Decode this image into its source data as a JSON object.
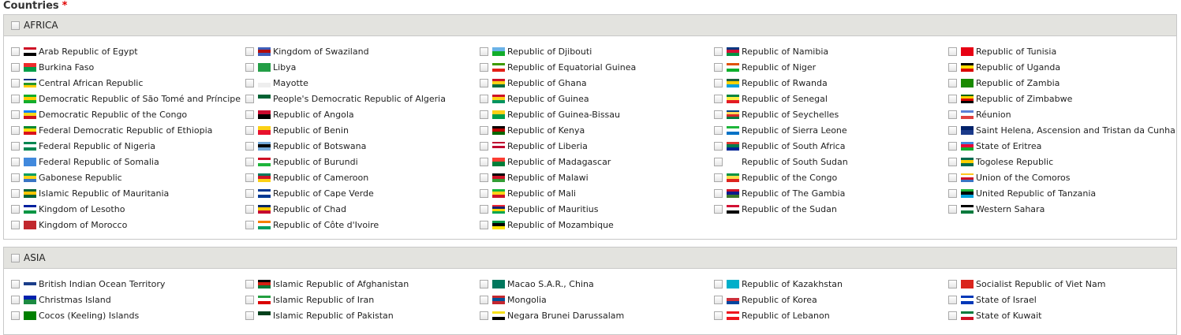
{
  "field_label": "Countries",
  "required_mark": "*",
  "sections": [
    {
      "name": "AFRICA",
      "columns": [
        [
          [
            "Arab Republic of Egypt",
            [
              "#ce1126",
              "#fff",
              "#000"
            ]
          ],
          [
            "Burkina Faso",
            [
              "#ef2b2d",
              "#009e49"
            ]
          ],
          [
            "Central African Republic",
            [
              "#003082",
              "#fff",
              "#289728",
              "#ffce00"
            ]
          ],
          [
            "Democratic Republic of São Tomé and Príncipe",
            [
              "#12ad2b",
              "#ffce00",
              "#12ad2b"
            ]
          ],
          [
            "Democratic Republic of the Congo",
            [
              "#007fff",
              "#f7d618",
              "#ce1021"
            ]
          ],
          [
            "Federal Democratic Republic of Ethiopia",
            [
              "#078930",
              "#fcdd09",
              "#da121a"
            ]
          ],
          [
            "Federal Republic of Nigeria",
            [
              "#008751",
              "#fff",
              "#008751"
            ]
          ],
          [
            "Federal Republic of Somalia",
            [
              "#4189dd"
            ]
          ],
          [
            "Gabonese Republic",
            [
              "#009e60",
              "#fcd116",
              "#3a75c4"
            ]
          ],
          [
            "Islamic Republic of Mauritania",
            [
              "#006233",
              "#ffc400",
              "#006233"
            ]
          ],
          [
            "Kingdom of Lesotho",
            [
              "#00209f",
              "#fff",
              "#009543"
            ]
          ],
          [
            "Kingdom of Morocco",
            [
              "#c1272d"
            ]
          ]
        ],
        [
          [
            "Kingdom of Swaziland",
            [
              "#3e5eb9",
              "#b10c0c",
              "#3e5eb9"
            ]
          ],
          [
            "Libya",
            [
              "#239e46"
            ]
          ],
          [
            "Mayotte",
            [
              "#fff",
              "#eee"
            ]
          ],
          [
            "People's Democratic Republic of Algeria",
            [
              "#006233",
              "#fff"
            ]
          ],
          [
            "Republic of Angola",
            [
              "#cc092f",
              "#000"
            ]
          ],
          [
            "Republic of Benin",
            [
              "#fcd116",
              "#e8112d"
            ]
          ],
          [
            "Republic of Botswana",
            [
              "#75aadb",
              "#000",
              "#75aadb"
            ]
          ],
          [
            "Republic of Burundi",
            [
              "#ce1126",
              "#fff",
              "#1eb53a"
            ]
          ],
          [
            "Republic of Cameroon",
            [
              "#007a5e",
              "#ce1126",
              "#fcd116"
            ]
          ],
          [
            "Republic of Cape Verde",
            [
              "#003893",
              "#fff",
              "#003893"
            ]
          ],
          [
            "Republic of Chad",
            [
              "#002664",
              "#fecb00",
              "#c60c30"
            ]
          ],
          [
            "Republic of Côte d'Ivoire",
            [
              "#f77f00",
              "#fff",
              "#009e60"
            ]
          ]
        ],
        [
          [
            "Republic of Djibouti",
            [
              "#6ab2e7",
              "#12ad2b"
            ]
          ],
          [
            "Republic of Equatorial Guinea",
            [
              "#3e9a00",
              "#fff",
              "#e32118"
            ]
          ],
          [
            "Republic of Ghana",
            [
              "#ce1126",
              "#fcd116",
              "#006b3f"
            ]
          ],
          [
            "Republic of Guinea",
            [
              "#ce1126",
              "#fcd116",
              "#009460"
            ]
          ],
          [
            "Republic of Guinea-Bissau",
            [
              "#fcd116",
              "#009e49"
            ]
          ],
          [
            "Republic of Kenya",
            [
              "#000",
              "#bb0000",
              "#006600"
            ]
          ],
          [
            "Republic of Liberia",
            [
              "#bf0a30",
              "#fff",
              "#bf0a30",
              "#fff"
            ]
          ],
          [
            "Republic of Madagascar",
            [
              "#fc3d32",
              "#007e3a"
            ]
          ],
          [
            "Republic of Malawi",
            [
              "#000",
              "#ce1126",
              "#339e35"
            ]
          ],
          [
            "Republic of Mali",
            [
              "#14b53a",
              "#fcd116",
              "#ce1126"
            ]
          ],
          [
            "Republic of Mauritius",
            [
              "#ea2839",
              "#1a206d",
              "#ffd500",
              "#00a551"
            ]
          ],
          [
            "Republic of Mozambique",
            [
              "#009a44",
              "#000",
              "#fce100"
            ]
          ]
        ],
        [
          [
            "Republic of Namibia",
            [
              "#003580",
              "#d21034",
              "#009543"
            ]
          ],
          [
            "Republic of Niger",
            [
              "#e05206",
              "#fff",
              "#0db02b"
            ]
          ],
          [
            "Republic of Rwanda",
            [
              "#20603d",
              "#fad201",
              "#00a1de"
            ]
          ],
          [
            "Republic of Senegal",
            [
              "#00853f",
              "#fdef42",
              "#e31b23"
            ]
          ],
          [
            "Republic of Seychelles",
            [
              "#003f87",
              "#fcd856",
              "#d62828",
              "#007a3d"
            ]
          ],
          [
            "Republic of Sierra Leone",
            [
              "#1eb53a",
              "#fff",
              "#0072c6"
            ]
          ],
          [
            "Republic of South Africa",
            [
              "#de3831",
              "#007a4d",
              "#002395"
            ]
          ],
          [
            "Republic of South Sudan",
            null
          ],
          [
            "Republic of the Congo",
            [
              "#009543",
              "#fbde4a",
              "#dc241f"
            ]
          ],
          [
            "Republic of The Gambia",
            [
              "#ce1126",
              "#0c1c8c",
              "#3a7728"
            ]
          ],
          [
            "Republic of the Sudan",
            [
              "#d21034",
              "#fff",
              "#000"
            ]
          ]
        ],
        [
          [
            "Republic of Tunisia",
            [
              "#e70013"
            ]
          ],
          [
            "Republic of Uganda",
            [
              "#000",
              "#fcdc04",
              "#d90000"
            ]
          ],
          [
            "Republic of Zambia",
            [
              "#198a00"
            ]
          ],
          [
            "Republic of Zimbabwe",
            [
              "#006400",
              "#ffd200",
              "#d40000",
              "#000"
            ]
          ],
          [
            "Réunion",
            [
              "#5b7fd6",
              "#fff",
              "#e04040"
            ]
          ],
          [
            "Saint Helena, Ascension and Tristan da Cunha",
            [
              "#012169",
              "#1b3a8a"
            ]
          ],
          [
            "State of Eritrea",
            [
              "#4189dd",
              "#ea0437",
              "#12ad2b"
            ]
          ],
          [
            "Togolese Republic",
            [
              "#006a4e",
              "#ffce00",
              "#006a4e"
            ]
          ],
          [
            "Union of the Comoros",
            [
              "#ffc61e",
              "#fff",
              "#ce1126",
              "#3a75c4"
            ]
          ],
          [
            "United Republic of Tanzania",
            [
              "#1eb53a",
              "#000",
              "#00a3dd"
            ]
          ],
          [
            "Western Sahara",
            [
              "#000",
              "#fff",
              "#007a3d"
            ]
          ]
        ]
      ]
    },
    {
      "name": "ASIA",
      "columns": [
        [
          [
            "British Indian Ocean Territory",
            [
              "#fff",
              "#1a3d8a",
              "#fff"
            ]
          ],
          [
            "Christmas Island",
            [
              "#0021ad",
              "#1c8a42"
            ]
          ],
          [
            "Cocos (Keeling) Islands",
            [
              "#008000"
            ]
          ]
        ],
        [
          [
            "Islamic Republic of Afghanistan",
            [
              "#000",
              "#d32011",
              "#007a36"
            ]
          ],
          [
            "Islamic Republic of Iran",
            [
              "#239f40",
              "#fff",
              "#da0000"
            ]
          ],
          [
            "Islamic Republic of Pakistan",
            [
              "#01411c",
              "#fff"
            ]
          ]
        ],
        [
          [
            "Macao S.A.R., China",
            [
              "#00785e"
            ]
          ],
          [
            "Mongolia",
            [
              "#c4272f",
              "#015197",
              "#c4272f"
            ]
          ],
          [
            "Negara Brunei Darussalam",
            [
              "#f7e017",
              "#fff",
              "#000"
            ]
          ]
        ],
        [
          [
            "Republic of Kazakhstan",
            [
              "#00afca"
            ]
          ],
          [
            "Republic of Korea",
            [
              "#fff",
              "#cd2e3a",
              "#0047a0"
            ]
          ],
          [
            "Republic of Lebanon",
            [
              "#ee161f",
              "#fff",
              "#ee161f"
            ]
          ]
        ],
        [
          [
            "Socialist Republic of Viet Nam",
            [
              "#da251d"
            ]
          ],
          [
            "State of Israel",
            [
              "#0038b8",
              "#fff",
              "#0038b8"
            ]
          ],
          [
            "State of Kuwait",
            [
              "#007a3d",
              "#fff",
              "#ce1126"
            ]
          ]
        ]
      ]
    }
  ]
}
